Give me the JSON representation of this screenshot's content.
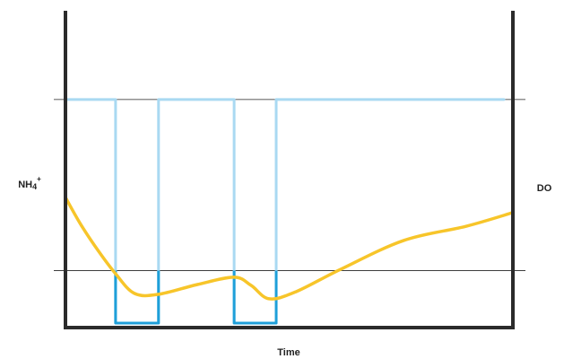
{
  "chart_data": {
    "type": "line",
    "x_label": "Time",
    "y_label": {
      "base": "NH",
      "sub": "4",
      "sup": "+"
    },
    "y2_label": "DO",
    "xlim": [
      0,
      100
    ],
    "ylim": [
      0,
      100
    ],
    "reference_lines": [
      72,
      18
    ],
    "series": [
      {
        "name": "DO",
        "color": "#a9d9f2",
        "low_color": "#1e9fd9",
        "step": true,
        "x": [
          0.4,
          11.2,
          11.2,
          20.8,
          20.8,
          37.7,
          37.7,
          47.1,
          47.1,
          98
        ],
        "values": [
          72,
          72,
          1.4,
          1.4,
          72,
          72,
          1.4,
          1.4,
          72,
          72
        ]
      },
      {
        "name": "NH4+",
        "color": "#f7c52a",
        "step": false,
        "x": [
          0,
          3.4,
          7.4,
          11.2,
          15.4,
          20.8,
          29.5,
          37.7,
          41.5,
          45.5,
          51.5,
          61.5,
          75.6,
          89.6,
          100
        ],
        "values": [
          41.1,
          32.6,
          24.1,
          17.0,
          10.8,
          10.5,
          13.6,
          15.9,
          13.3,
          9.1,
          11.3,
          18.4,
          27.5,
          32.0,
          36.3
        ]
      }
    ]
  }
}
